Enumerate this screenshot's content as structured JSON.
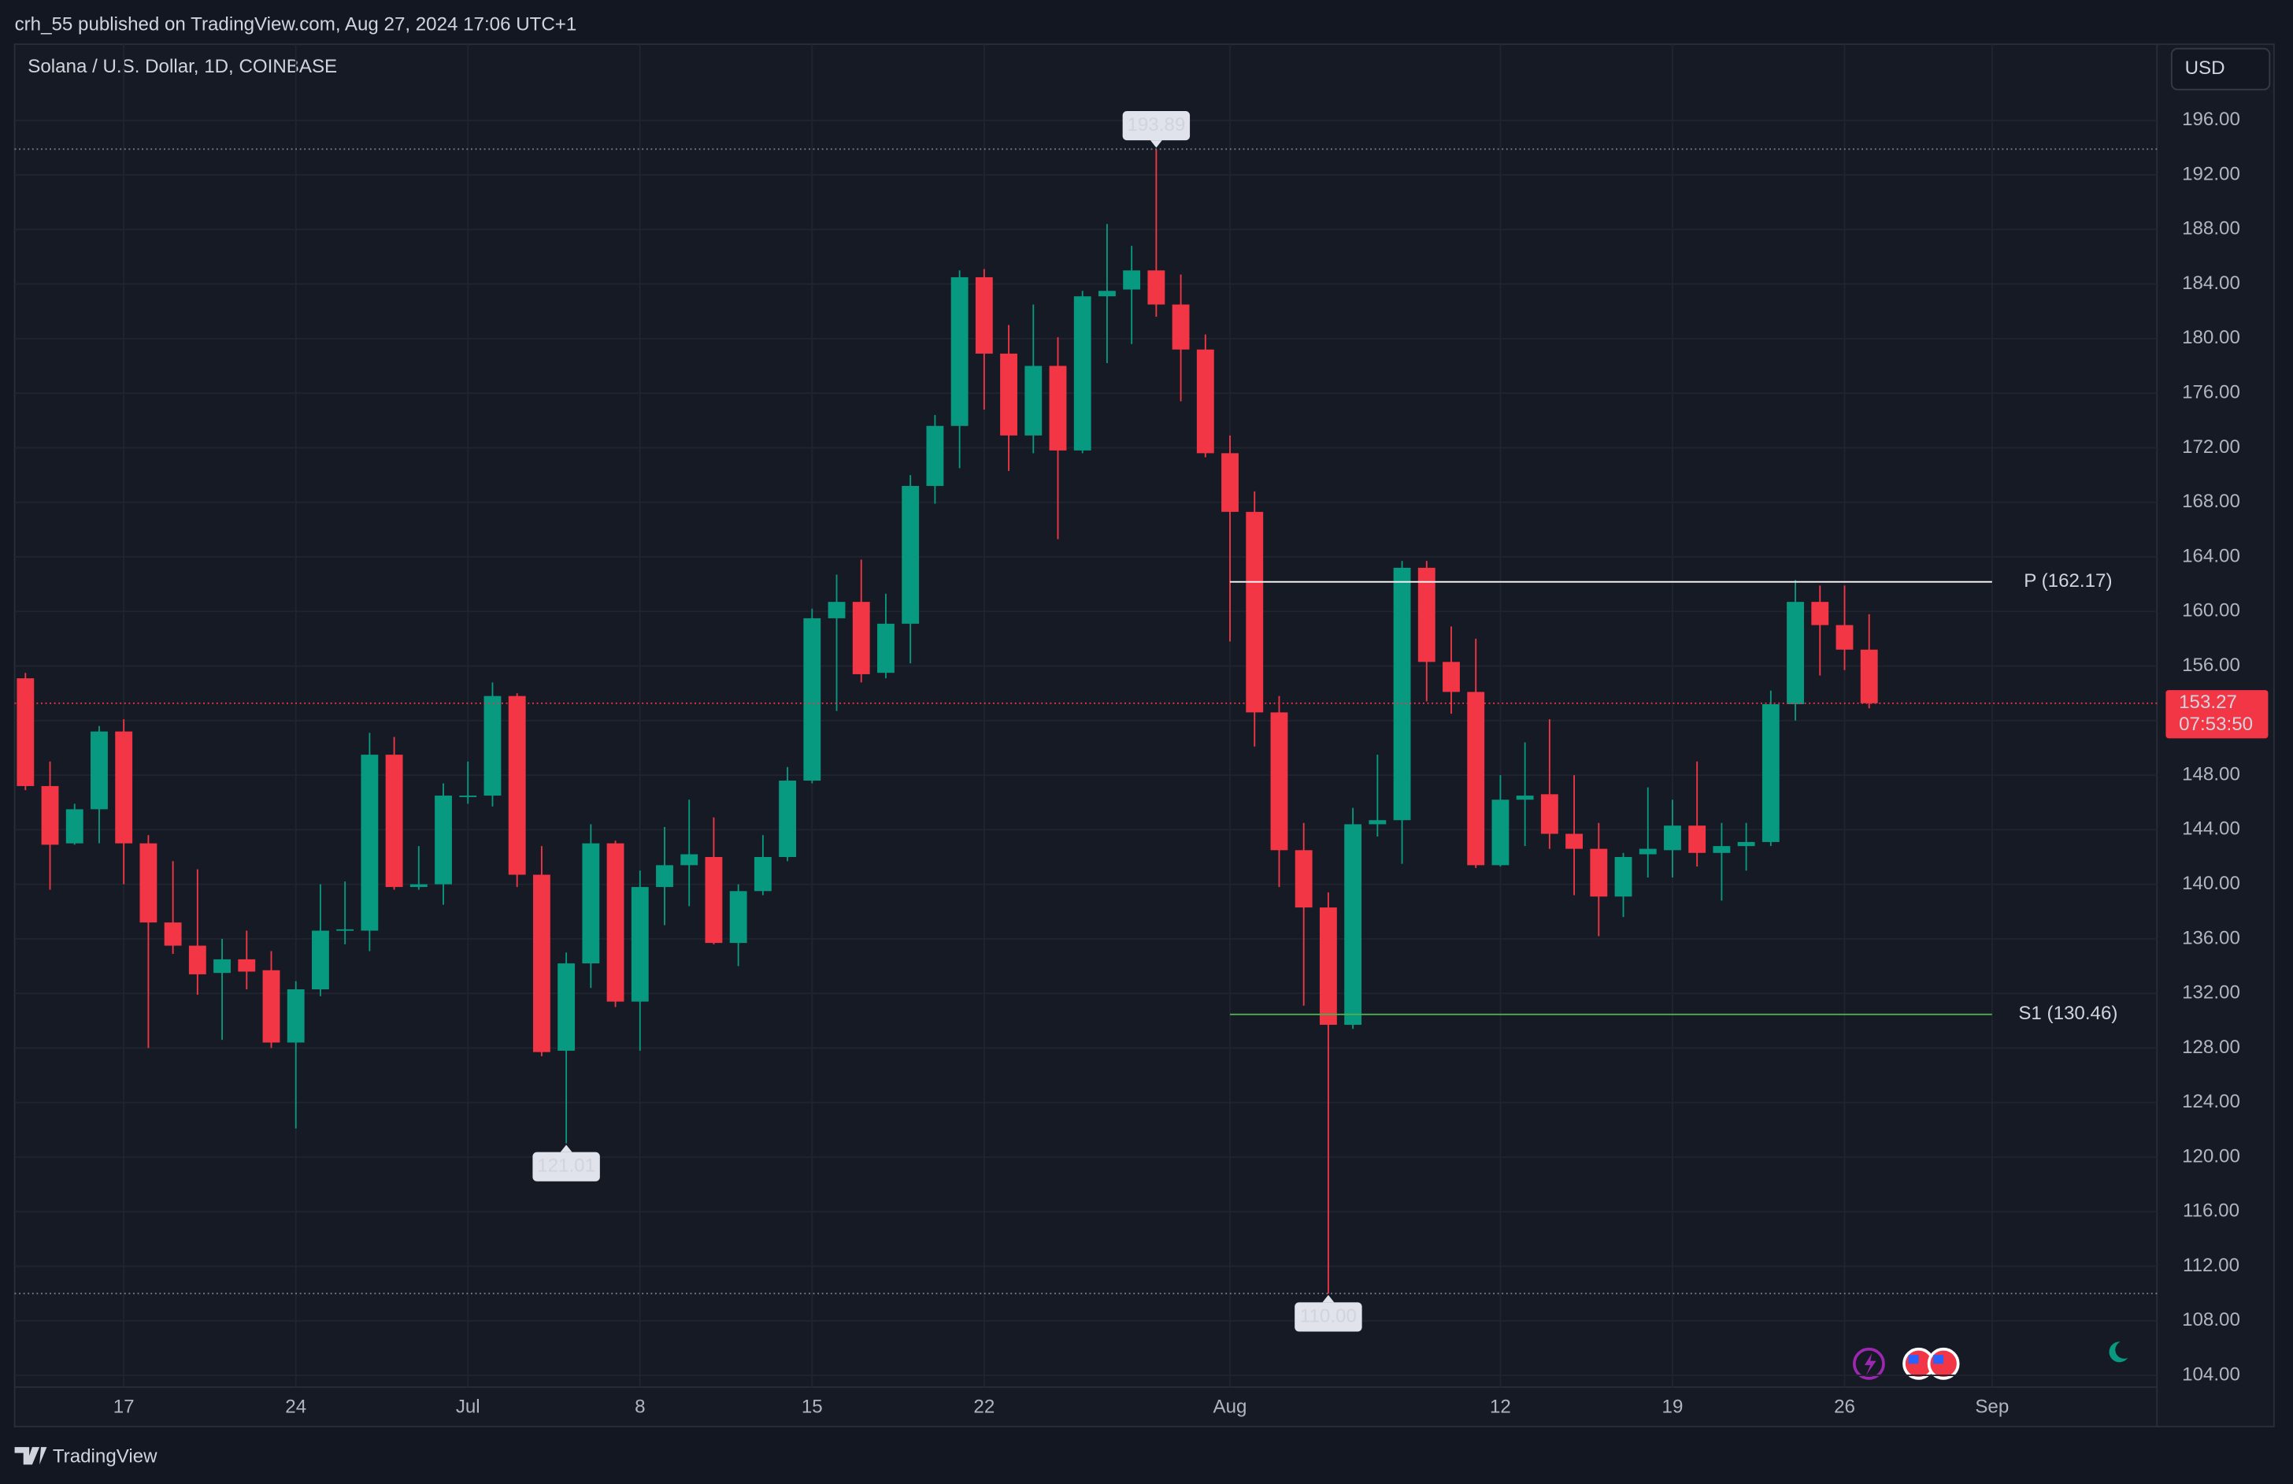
{
  "header": {
    "published": "crh_55 published on TradingView.com, Aug 27, 2024 17:06 UTC+1",
    "brand": "TradingView"
  },
  "chart_data": {
    "type": "candlestick",
    "title": "Solana / U.S. Dollar, 1D, COINBASE",
    "currency": "USD",
    "colors": {
      "up": "#089981",
      "down": "#f23645"
    },
    "x": [
      0,
      1,
      2,
      3,
      4,
      5,
      6,
      7,
      8,
      9,
      10,
      11,
      12,
      13,
      14,
      15,
      16,
      17,
      18,
      19,
      20,
      21,
      22,
      23,
      24,
      25,
      26,
      27,
      28,
      29,
      30,
      31,
      32,
      33,
      34,
      35,
      36,
      37,
      38,
      39,
      40,
      41,
      42,
      43,
      44,
      45,
      46,
      47,
      48,
      49,
      50,
      51,
      52,
      53,
      54,
      55,
      56,
      57,
      58,
      59,
      60,
      61,
      62,
      63,
      64,
      65,
      66,
      67,
      68,
      69,
      70,
      71,
      72,
      73,
      74,
      75
    ],
    "open": [
      155.1,
      147.2,
      143.0,
      145.5,
      151.2,
      143.0,
      137.2,
      135.5,
      133.5,
      134.5,
      133.7,
      128.4,
      132.3,
      136.6,
      136.6,
      149.5,
      139.8,
      140.0,
      146.4,
      146.5,
      153.8,
      140.7,
      127.8,
      134.2,
      143.0,
      131.4,
      139.8,
      141.4,
      142.0,
      135.7,
      139.5,
      142.0,
      147.6,
      159.5,
      160.7,
      155.5,
      159.1,
      169.2,
      173.6,
      184.5,
      178.9,
      172.9,
      178.0,
      171.8,
      183.1,
      183.6,
      185.0,
      182.5,
      179.2,
      171.6,
      167.3,
      152.6,
      142.5,
      138.3,
      129.7,
      144.4,
      144.7,
      163.2,
      156.3,
      154.1,
      141.4,
      146.2,
      146.6,
      143.7,
      142.6,
      139.1,
      142.2,
      142.5,
      144.3,
      142.3,
      142.8,
      143.1,
      153.2,
      160.7,
      159.0,
      157.2
    ],
    "high": [
      155.5,
      149.0,
      145.9,
      151.6,
      152.1,
      143.6,
      141.7,
      141.1,
      136.0,
      136.6,
      135.1,
      132.9,
      140.0,
      140.2,
      151.1,
      150.8,
      142.8,
      147.4,
      149.0,
      154.8,
      154.0,
      142.8,
      135.0,
      144.4,
      143.2,
      141.0,
      144.2,
      146.2,
      144.9,
      140.0,
      143.6,
      148.6,
      160.2,
      162.7,
      163.8,
      161.3,
      170.0,
      174.4,
      185.0,
      185.1,
      181.0,
      182.5,
      180.1,
      183.5,
      188.4,
      186.8,
      193.89,
      184.7,
      180.3,
      172.9,
      168.8,
      153.8,
      144.5,
      139.4,
      145.6,
      149.5,
      163.7,
      163.7,
      158.9,
      158.0,
      148.0,
      150.4,
      152.1,
      148.0,
      144.5,
      142.3,
      147.1,
      146.2,
      149.0,
      144.5,
      144.5,
      154.2,
      162.3,
      161.9,
      161.9,
      159.8
    ],
    "low": [
      146.9,
      139.6,
      142.9,
      143.0,
      140.0,
      128.0,
      134.9,
      131.9,
      128.6,
      132.3,
      128.0,
      122.1,
      131.8,
      135.6,
      135.1,
      139.6,
      139.6,
      138.5,
      145.9,
      145.7,
      139.8,
      127.4,
      121.01,
      132.4,
      131.0,
      127.8,
      137.0,
      138.4,
      135.6,
      134.0,
      139.2,
      141.7,
      147.4,
      152.7,
      154.8,
      155.1,
      156.2,
      167.9,
      170.5,
      174.8,
      170.3,
      171.6,
      165.3,
      171.6,
      178.2,
      179.6,
      181.6,
      175.4,
      171.3,
      157.8,
      150.1,
      139.8,
      131.1,
      110.0,
      129.4,
      143.5,
      141.5,
      153.4,
      152.5,
      141.2,
      141.3,
      142.8,
      142.6,
      139.2,
      136.2,
      137.6,
      140.5,
      140.5,
      141.3,
      138.8,
      141.0,
      142.8,
      152.0,
      155.3,
      155.7,
      152.9
    ],
    "close": [
      147.2,
      142.9,
      145.5,
      151.2,
      143.0,
      137.2,
      135.5,
      133.4,
      134.5,
      133.6,
      128.4,
      132.3,
      136.6,
      136.7,
      149.5,
      139.8,
      140.0,
      146.5,
      146.5,
      153.8,
      140.7,
      127.7,
      134.2,
      143.0,
      131.4,
      139.8,
      141.4,
      142.2,
      135.7,
      139.5,
      142.0,
      147.6,
      159.5,
      160.7,
      155.4,
      159.1,
      169.2,
      173.6,
      184.5,
      178.9,
      172.9,
      178.0,
      171.8,
      183.1,
      183.5,
      185.0,
      182.5,
      179.2,
      171.6,
      167.3,
      152.6,
      142.5,
      138.3,
      129.7,
      144.4,
      144.7,
      163.2,
      156.3,
      154.1,
      141.4,
      146.2,
      146.5,
      143.7,
      142.6,
      139.1,
      142.0,
      142.6,
      144.3,
      142.3,
      142.8,
      143.1,
      153.2,
      160.7,
      159.0,
      157.2,
      153.27
    ],
    "xlim": [
      -0.44,
      86.71
    ],
    "ylim": [
      103.14,
      201.58
    ],
    "xticks": [
      {
        "value": 4,
        "label": "17"
      },
      {
        "value": 11,
        "label": "24"
      },
      {
        "value": 18,
        "label": "Jul"
      },
      {
        "value": 25,
        "label": "8"
      },
      {
        "value": 32,
        "label": "15"
      },
      {
        "value": 39,
        "label": "22"
      },
      {
        "value": 49,
        "label": "Aug"
      },
      {
        "value": 60,
        "label": "12"
      },
      {
        "value": 67,
        "label": "19"
      },
      {
        "value": 74,
        "label": "26"
      },
      {
        "value": 80,
        "label": "Sep"
      }
    ],
    "yticks": [
      {
        "value": 104,
        "label": "104.00"
      },
      {
        "value": 108,
        "label": "108.00"
      },
      {
        "value": 112,
        "label": "112.00"
      },
      {
        "value": 116,
        "label": "116.00"
      },
      {
        "value": 120,
        "label": "120.00"
      },
      {
        "value": 124,
        "label": "124.00"
      },
      {
        "value": 128,
        "label": "128.00"
      },
      {
        "value": 132,
        "label": "132.00"
      },
      {
        "value": 136,
        "label": "136.00"
      },
      {
        "value": 140,
        "label": "140.00"
      },
      {
        "value": 144,
        "label": "144.00"
      },
      {
        "value": 148,
        "label": "148.00"
      },
      {
        "value": 152,
        "label": "152.00"
      },
      {
        "value": 156,
        "label": "156.00"
      },
      {
        "value": 160,
        "label": "160.00"
      },
      {
        "value": 164,
        "label": "164.00"
      },
      {
        "value": 168,
        "label": "168.00"
      },
      {
        "value": 172,
        "label": "172.00"
      },
      {
        "value": 176,
        "label": "176.00"
      },
      {
        "value": 180,
        "label": "180.00"
      },
      {
        "value": 184,
        "label": "184.00"
      },
      {
        "value": 188,
        "label": "188.00"
      },
      {
        "value": 192,
        "label": "192.00"
      },
      {
        "value": 196,
        "label": "196.00"
      }
    ],
    "grid": true,
    "extremes": [
      {
        "x": 46,
        "value": 193.89,
        "label": "193.89"
      },
      {
        "x": 22,
        "value": 121.01,
        "label": "121.01"
      },
      {
        "x": 53,
        "value": 110,
        "label": "110.00"
      }
    ],
    "pivots": [
      {
        "label": "P (162.17)",
        "value": 162.17,
        "x": [
          49,
          80
        ],
        "color": "#ffffff"
      },
      {
        "label": "S1 (130.46)",
        "value": 130.46,
        "x": [
          49,
          80
        ],
        "color": "#4caf50"
      }
    ],
    "last_price": {
      "value": 153.27,
      "countdown": "07:53:50",
      "color": "#f23645"
    }
  }
}
